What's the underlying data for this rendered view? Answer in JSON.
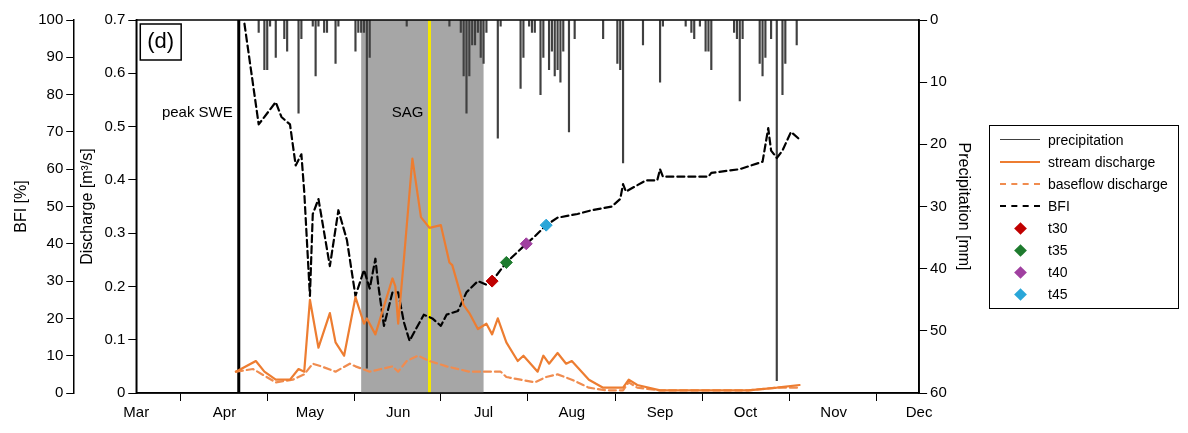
{
  "chart_data": {
    "type": "line",
    "ylabel": "Discharge [m³/s]",
    "y2label": "BFI [%]",
    "y3label": "Precipitation [mm]",
    "xlim": [
      "--03-01",
      "--12-01"
    ],
    "xticks": [
      {
        "value": "--03-01",
        "label": "Mar"
      },
      {
        "value": "--04-01",
        "label": "Apr"
      },
      {
        "value": "--05-01",
        "label": "May"
      },
      {
        "value": "--06-01",
        "label": "Jun"
      },
      {
        "value": "--07-01",
        "label": "Jul"
      },
      {
        "value": "--08-01",
        "label": "Aug"
      },
      {
        "value": "--09-01",
        "label": "Sep"
      },
      {
        "value": "--10-01",
        "label": "Oct"
      },
      {
        "value": "--11-01",
        "label": "Nov"
      },
      {
        "value": "--12-01",
        "label": "Dec"
      }
    ],
    "ylim": [
      0,
      0.7
    ],
    "yticks": [
      0,
      0.1,
      0.2,
      0.3,
      0.4,
      0.5,
      0.6,
      0.7
    ],
    "y2lim": [
      0,
      100
    ],
    "y2ticks": [
      0,
      10,
      20,
      30,
      40,
      50,
      60,
      70,
      80,
      90,
      100
    ],
    "y3lim": [
      60,
      0
    ],
    "y3ticks": [
      0,
      10,
      20,
      30,
      40,
      50,
      60
    ],
    "series": [
      {
        "name": "precipitation",
        "type": "bar",
        "axis": "y3",
        "color": "#404040",
        "x": [
          "--04-13",
          "--04-15",
          "--04-16",
          "--04-17",
          "--04-19",
          "--04-22",
          "--04-23",
          "--04-27",
          "--04-28",
          "--05-02",
          "--05-03",
          "--05-04",
          "--05-06",
          "--05-07",
          "--05-10",
          "--05-11",
          "--05-17",
          "--05-18",
          "--05-19",
          "--05-20",
          "--05-21",
          "--05-22",
          "--06-04",
          "--06-19",
          "--06-23",
          "--06-24",
          "--06-25",
          "--06-26",
          "--06-27",
          "--06-28",
          "--06-29",
          "--06-30",
          "--07-01",
          "--07-02",
          "--07-06",
          "--07-07",
          "--07-14",
          "--07-15",
          "--07-17",
          "--07-18",
          "--07-19",
          "--07-21",
          "--07-22",
          "--07-24",
          "--07-25",
          "--07-26",
          "--07-27",
          "--07-28",
          "--07-29",
          "--07-31",
          "--08-02",
          "--08-12",
          "--08-17",
          "--08-18",
          "--08-19",
          "--08-26",
          "--09-01",
          "--09-02",
          "--09-10",
          "--09-12",
          "--09-13",
          "--09-15",
          "--09-17",
          "--09-18",
          "--09-19",
          "--09-27",
          "--09-28",
          "--09-29",
          "--09-30",
          "--10-06",
          "--10-07",
          "--10-08",
          "--10-10",
          "--10-12",
          "--10-14",
          "--10-15",
          "--10-19"
        ],
        "values": [
          2,
          8,
          8,
          1,
          6,
          3,
          5,
          15,
          3,
          1,
          9,
          1,
          2,
          2,
          7,
          1,
          5,
          2,
          2,
          2,
          56,
          6,
          1,
          1,
          2,
          9,
          15,
          9,
          4,
          4,
          2,
          6,
          7,
          2,
          19,
          1,
          11,
          6,
          1,
          2,
          2,
          12,
          6,
          8,
          5,
          9,
          8,
          10,
          5,
          18,
          3,
          3,
          7,
          8,
          23,
          4,
          10,
          1,
          1,
          2,
          3,
          1,
          5,
          5,
          8,
          2,
          3,
          13,
          3,
          7,
          9,
          6,
          3,
          58,
          12,
          7,
          4
        ]
      },
      {
        "name": "stream discharge",
        "color": "#ed7d31",
        "x": [
          "--04-05",
          "--04-12",
          "--04-15",
          "--04-19",
          "--04-24",
          "--04-27",
          "--04-29",
          "--05-01",
          "--05-04",
          "--05-08",
          "--05-10",
          "--05-13",
          "--05-17",
          "--05-20",
          "--05-21",
          "--05-24",
          "--05-30",
          "--05-31",
          "--06-01",
          "--06-03",
          "--06-06",
          "--06-09",
          "--06-12",
          "--06-16",
          "--06-19",
          "--06-20",
          "--06-24",
          "--06-26",
          "--06-29",
          "--07-02",
          "--07-04",
          "--07-06",
          "--07-09",
          "--07-13",
          "--07-15",
          "--07-20",
          "--07-22",
          "--07-24",
          "--07-27",
          "--07-30",
          "--08-01",
          "--08-07",
          "--08-12",
          "--08-19",
          "--08-21",
          "--08-24",
          "--09-01",
          "--09-17",
          "--10-02",
          "--10-12",
          "--10-20"
        ],
        "values": [
          0.04,
          0.06,
          0.04,
          0.025,
          0.025,
          0.045,
          0.04,
          0.175,
          0.085,
          0.15,
          0.095,
          0.07,
          0.18,
          0.13,
          0.14,
          0.11,
          0.215,
          0.2,
          0.13,
          0.25,
          0.44,
          0.33,
          0.31,
          0.315,
          0.245,
          0.24,
          0.165,
          0.15,
          0.12,
          0.13,
          0.11,
          0.14,
          0.095,
          0.06,
          0.07,
          0.04,
          0.07,
          0.055,
          0.075,
          0.055,
          0.06,
          0.025,
          0.01,
          0.01,
          0.025,
          0.015,
          0.005,
          0.005,
          0.005,
          0.01,
          0.015
        ]
      },
      {
        "name": "baseflow discharge",
        "line_style": "dashed",
        "color": "#f08c4f",
        "x": [
          "--04-05",
          "--04-11",
          "--04-19",
          "--04-25",
          "--04-29",
          "--05-02",
          "--05-05",
          "--05-10",
          "--05-15",
          "--05-17",
          "--05-22",
          "--05-26",
          "--05-30",
          "--06-01",
          "--06-04",
          "--06-08",
          "--06-12",
          "--06-18",
          "--06-26",
          "--07-02",
          "--07-07",
          "--07-09",
          "--07-14",
          "--07-19",
          "--07-23",
          "--07-27",
          "--08-01",
          "--08-07",
          "--08-13",
          "--08-19",
          "--08-21",
          "--08-24",
          "--09-01",
          "--09-17",
          "--10-02",
          "--10-12",
          "--10-20"
        ],
        "values": [
          0.04,
          0.045,
          0.02,
          0.025,
          0.035,
          0.055,
          0.05,
          0.04,
          0.055,
          0.05,
          0.04,
          0.045,
          0.05,
          0.04,
          0.06,
          0.07,
          0.06,
          0.05,
          0.04,
          0.04,
          0.04,
          0.03,
          0.025,
          0.02,
          0.03,
          0.035,
          0.025,
          0.01,
          0.005,
          0.005,
          0.02,
          0.01,
          0.005,
          0.005,
          0.005,
          0.01,
          0.01
        ]
      },
      {
        "name": "BFI",
        "axis": "y2",
        "line_style": "dashed",
        "color": "#000000",
        "x": [
          "--04-08",
          "--04-13",
          "--04-19",
          "--04-21",
          "--04-24",
          "--04-26",
          "--04-28",
          "--04-29",
          "--05-01",
          "--05-02",
          "--05-04",
          "--05-08",
          "--05-11",
          "--05-14",
          "--05-17",
          "--05-20",
          "--05-22",
          "--05-24",
          "--05-25",
          "--05-27",
          "--05-30",
          "--06-01",
          "--06-03",
          "--06-05",
          "--06-10",
          "--06-13",
          "--06-16",
          "--06-18",
          "--06-22",
          "--06-25",
          "--06-29",
          "--07-02",
          "--07-04",
          "--07-09",
          "--07-16",
          "--07-19",
          "--07-23",
          "--07-27",
          "--08-03",
          "--08-08",
          "--08-15",
          "--08-18",
          "--08-19",
          "--08-20",
          "--08-27",
          "--08-31",
          "--09-01",
          "--09-02",
          "--09-18",
          "--09-19",
          "--09-29",
          "--10-07",
          "--10-09",
          "--10-10",
          "--10-12",
          "--10-14",
          "--10-17",
          "--10-20"
        ],
        "values": [
          99,
          72,
          78,
          74,
          72,
          61,
          64,
          54,
          26,
          48,
          52,
          34,
          49,
          41,
          26,
          33,
          28,
          36,
          29,
          18,
          27,
          27,
          19,
          14,
          21,
          20,
          18,
          21,
          22,
          27,
          30,
          29,
          30,
          35,
          40,
          42,
          45,
          47,
          48,
          49,
          50,
          52,
          56,
          54,
          57,
          57,
          60,
          58,
          58,
          59,
          60,
          62,
          71,
          65,
          63,
          65,
          70,
          68
        ]
      },
      {
        "name": "t30",
        "type": "scatter",
        "axis": "y2",
        "marker": "diamond",
        "color": "#c00000",
        "x": [
          "--07-04"
        ],
        "values": [
          30
        ]
      },
      {
        "name": "t35",
        "type": "scatter",
        "axis": "y2",
        "marker": "diamond",
        "color": "#1e7b2e",
        "x": [
          "--07-09"
        ],
        "values": [
          35
        ]
      },
      {
        "name": "t40",
        "type": "scatter",
        "axis": "y2",
        "marker": "diamond",
        "color": "#a040a0",
        "x": [
          "--07-16"
        ],
        "values": [
          40
        ]
      },
      {
        "name": "t45",
        "type": "scatter",
        "axis": "y2",
        "marker": "diamond",
        "color": "#2aa6d8",
        "x": [
          "--07-23"
        ],
        "values": [
          45
        ]
      }
    ],
    "ref_lines": [
      {
        "axis": "x",
        "value": "--04-06",
        "label": "peak SWE",
        "color": "#000000"
      },
      {
        "axis": "x",
        "value": "--06-12",
        "label": "SAG",
        "color": "#f5e800"
      }
    ],
    "bands": [
      {
        "axis": "x",
        "from": "--05-19",
        "to": "--07-01",
        "color": "#a6a6a6"
      }
    ],
    "annotations": [
      "(d)"
    ],
    "legend": "right",
    "grid": false
  }
}
